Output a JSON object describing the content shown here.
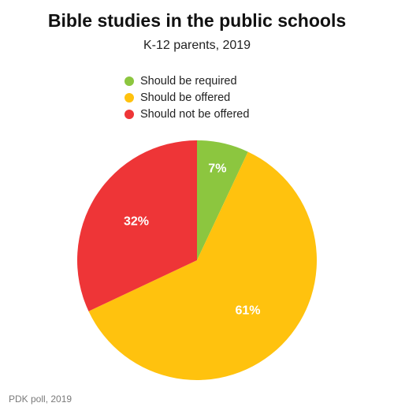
{
  "title": "Bible studies in the public schools",
  "subtitle": "K-12 parents, 2019",
  "source": "PDK poll, 2019",
  "chart_data": {
    "type": "pie",
    "title": "Bible studies in the public schools",
    "subtitle": "K-12 parents, 2019",
    "categories": [
      "Should be required",
      "Should be offered",
      "Should not be offered"
    ],
    "values": [
      7,
      61,
      32
    ],
    "labels": [
      "7%",
      "61%",
      "32%"
    ],
    "colors": [
      "#8cc63f",
      "#ffc20e",
      "#ee3537"
    ],
    "legend_position": "top-center",
    "start_angle": "12 o'clock",
    "direction": "clockwise"
  }
}
